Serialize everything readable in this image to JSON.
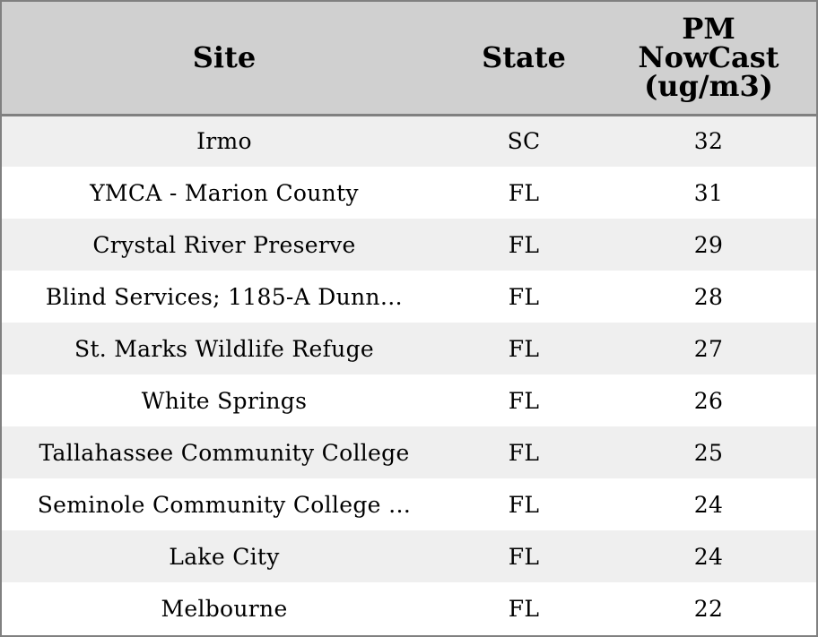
{
  "table": {
    "headers": {
      "site": "Site",
      "state": "State",
      "pm_lines": [
        "PM",
        "NowCast",
        "(ug/m3)"
      ]
    },
    "rows": [
      {
        "site": "Irmo",
        "state": "SC",
        "pm": "32"
      },
      {
        "site": "YMCA - Marion County",
        "state": "FL",
        "pm": "31"
      },
      {
        "site": "Crystal River Preserve",
        "state": "FL",
        "pm": "29"
      },
      {
        "site": "Blind Services; 1185-A Dunn…",
        "state": "FL",
        "pm": "28"
      },
      {
        "site": "St. Marks Wildlife Refuge",
        "state": "FL",
        "pm": "27"
      },
      {
        "site": "White Springs",
        "state": "FL",
        "pm": "26"
      },
      {
        "site": "Tallahassee Community College",
        "state": "FL",
        "pm": "25"
      },
      {
        "site": "Seminole Community College …",
        "state": "FL",
        "pm": "24"
      },
      {
        "site": "Lake City",
        "state": "FL",
        "pm": "24"
      },
      {
        "site": "Melbourne",
        "state": "FL",
        "pm": "22"
      }
    ]
  },
  "colors": {
    "header_bg": "#d0d0d0",
    "row_alt_bg": "#efefef",
    "row_bg": "#ffffff",
    "border": "#808080"
  }
}
